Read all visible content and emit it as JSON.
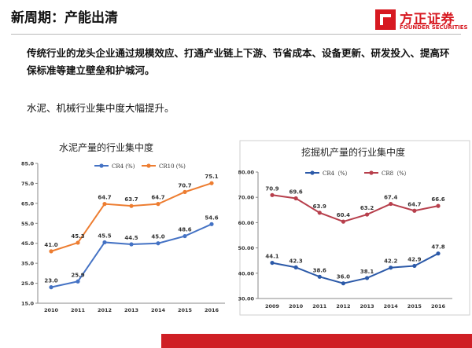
{
  "slide": {
    "title": "新周期：产能出清",
    "para1": "传统行业的龙头企业通过规模效应、打通产业链上下游、节省成本、设备更新、研发投入、提高环保标准等建立壁垒和护城河。",
    "para2": "水泥、机械行业集中度大幅提升。"
  },
  "logo": {
    "name": "方正证券",
    "sub": "FOUNDER SECURITIES"
  },
  "colors": {
    "accent": "#d71921",
    "blue": "#4472c4",
    "orange": "#ed7d31",
    "navy": "#2b59a8",
    "crimson": "#b73f4c"
  },
  "chart_data": [
    {
      "type": "line",
      "title": "水泥产量的行业集中度",
      "categories": [
        "2010",
        "2011",
        "2012",
        "2013",
        "2014",
        "2015",
        "2016"
      ],
      "ylim": [
        15,
        85
      ],
      "yticks": [
        "15.0",
        "25.0",
        "35.0",
        "45.0",
        "55.0",
        "65.0",
        "75.0",
        "85.0"
      ],
      "ytick_values": [
        15,
        25,
        35,
        45,
        55,
        65,
        75,
        85
      ],
      "legend": "top",
      "series": [
        {
          "name": "CR4 (%)",
          "color": "#4472c4",
          "values": [
            23.0,
            25.9,
            45.5,
            44.5,
            45.0,
            48.6,
            54.6
          ],
          "labels": [
            "23.0",
            "25.9",
            "45.5",
            "44.5",
            "45.0",
            "48.6",
            "54.6"
          ]
        },
        {
          "name": "CR10 (%)",
          "color": "#ed7d31",
          "values": [
            41.0,
            45.3,
            64.7,
            63.7,
            64.7,
            70.7,
            75.1
          ],
          "labels": [
            "41.0",
            "45.3",
            "64.7",
            "63.7",
            "64.7",
            "70.7",
            "75.1"
          ]
        }
      ]
    },
    {
      "type": "line",
      "title": "挖掘机产量的行业集中度",
      "categories": [
        "2009",
        "2010",
        "2011",
        "2012",
        "2013",
        "2014",
        "2015",
        "2016"
      ],
      "ylim": [
        30,
        80
      ],
      "yticks": [
        "30.00",
        "40.00",
        "50.00",
        "60.00",
        "70.00",
        "80.00"
      ],
      "ytick_values": [
        30,
        40,
        50,
        60,
        70,
        80
      ],
      "legend": "top",
      "series": [
        {
          "name": "CR4（%）",
          "color": "#2b59a8",
          "values": [
            44.1,
            42.3,
            38.6,
            36.0,
            38.1,
            42.2,
            42.9,
            47.8
          ],
          "labels": [
            "44.1",
            "42.3",
            "38.6",
            "36.0",
            "38.1",
            "42.2",
            "42.9",
            "47.8"
          ]
        },
        {
          "name": "CR8（%）",
          "color": "#b73f4c",
          "values": [
            70.9,
            69.6,
            63.9,
            60.4,
            63.2,
            67.4,
            64.7,
            66.6
          ],
          "labels": [
            "70.9",
            "69.6",
            "63.9",
            "60.4",
            "63.2",
            "67.4",
            "64.7",
            "66.6"
          ]
        }
      ]
    }
  ]
}
